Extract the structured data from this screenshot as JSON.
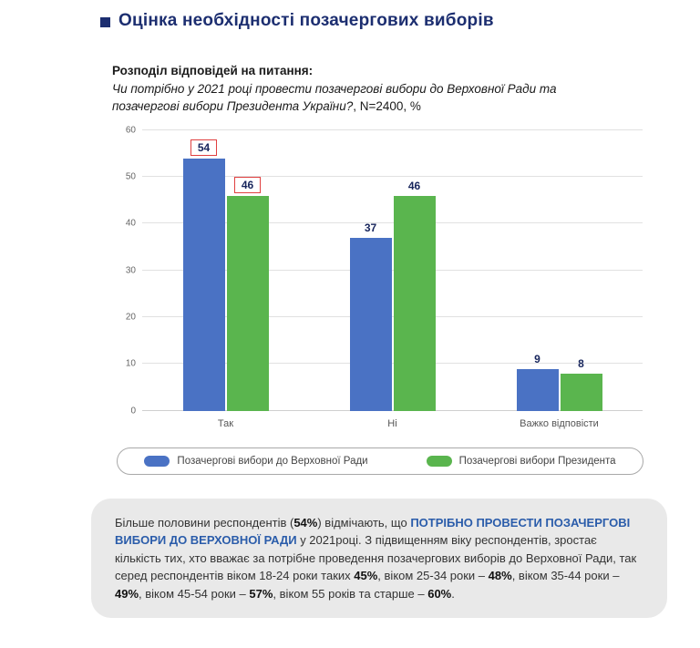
{
  "page": {
    "title": "Оцінка необхідності позачергових виборів"
  },
  "question": {
    "heading": "Розподіл відповідей на питання:",
    "italic_text": "Чи потрібно у 2021 році провести позачергові вибори до Верховної Ради та позачергові вибори Президента України?",
    "suffix": ", N=2400, %"
  },
  "chart_data": {
    "type": "bar",
    "title": "",
    "categories": [
      "Так",
      "Ні",
      "Важко відповісти"
    ],
    "series": [
      {
        "name": "Позачергові вибори до Верховної Ради",
        "color": "#4a72c4",
        "values": [
          54,
          37,
          9
        ]
      },
      {
        "name": "Позачергові вибори Президента",
        "color": "#5ab54e",
        "values": [
          46,
          46,
          8
        ]
      }
    ],
    "ylim": [
      0,
      60
    ],
    "yticks": [
      0,
      10,
      20,
      30,
      40,
      50,
      60
    ],
    "grid": true,
    "legend_position": "bottom",
    "highlighted_value_boxes": [
      {
        "category": "Так",
        "series": "Позачергові вибори до Верховної Ради",
        "value": 54
      },
      {
        "category": "Так",
        "series": "Позачергові вибори Президента",
        "value": 46
      }
    ],
    "highlight_box_color": "#e04040"
  },
  "summary": {
    "segments": [
      {
        "text": "Більше половини респондентів (",
        "style": "normal"
      },
      {
        "text": "54%",
        "style": "bold"
      },
      {
        "text": ") відмічають, що ",
        "style": "normal"
      },
      {
        "text": "ПОТРІБНО ПРОВЕСТИ ПОЗАЧЕРГОВІ ВИБОРИ ДО ВЕРХОВНОЇ РАДИ",
        "style": "bold-blue"
      },
      {
        "text": " у 2021році. З підвищенням віку респондентів, зростає кількість тих, хто вважає за потрібне проведення позачергових виборів до Верховної Ради, так серед респондентів віком 18-24 роки таких ",
        "style": "normal"
      },
      {
        "text": "45%",
        "style": "bold"
      },
      {
        "text": ", віком 25-34 роки – ",
        "style": "normal"
      },
      {
        "text": "48%",
        "style": "bold"
      },
      {
        "text": ", віком 35-44 роки – ",
        "style": "normal"
      },
      {
        "text": "49%",
        "style": "bold"
      },
      {
        "text": ", віком 45-54 роки – ",
        "style": "normal"
      },
      {
        "text": "57%",
        "style": "bold"
      },
      {
        "text": ", віком 55 років та старше – ",
        "style": "normal"
      },
      {
        "text": "60%",
        "style": "bold"
      },
      {
        "text": ".",
        "style": "normal"
      }
    ]
  },
  "colors": {
    "title": "#1c2e70",
    "accent_blue_text": "#2a5caa",
    "summary_bg": "#e9e9e9"
  }
}
